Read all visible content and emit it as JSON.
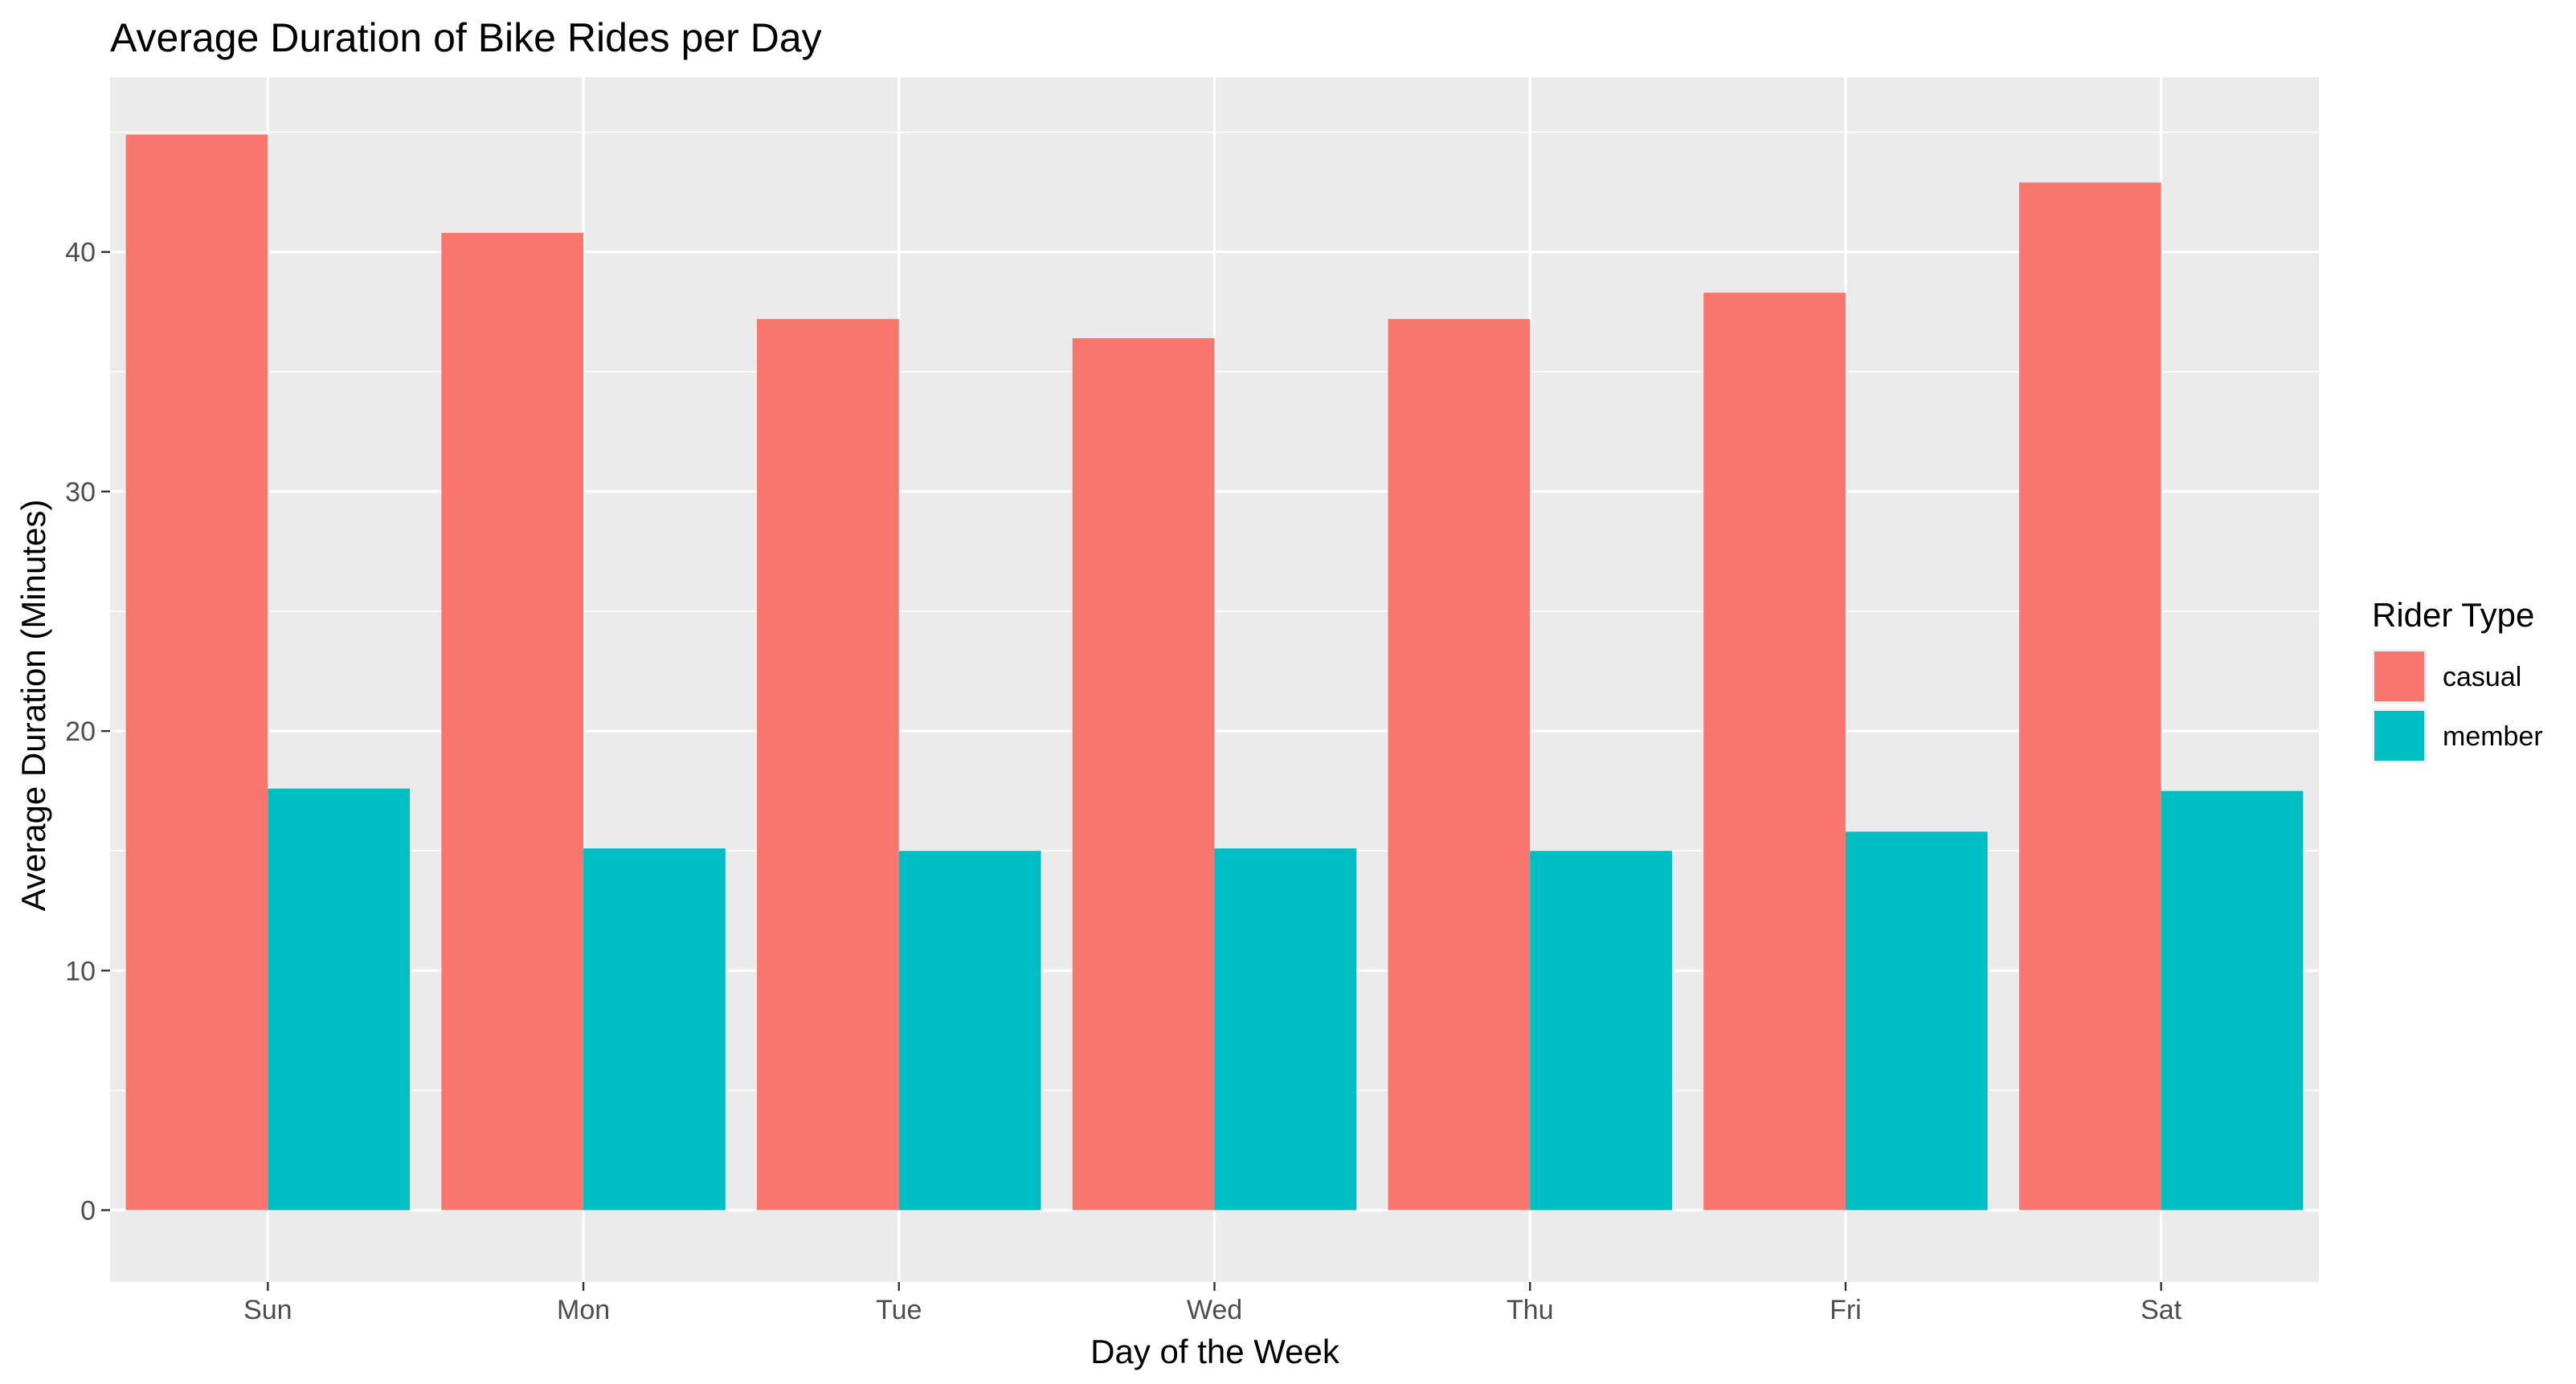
{
  "chart_data": {
    "type": "bar",
    "title": "Average Duration of Bike Rides per Day",
    "xlabel": "Day of the Week",
    "ylabel": "Average Duration (Minutes)",
    "categories": [
      "Sun",
      "Mon",
      "Tue",
      "Wed",
      "Thu",
      "Fri",
      "Sat"
    ],
    "series": [
      {
        "name": "casual",
        "color": "#F8766D",
        "values": [
          44.9,
          40.8,
          37.2,
          36.4,
          37.2,
          38.3,
          42.9
        ]
      },
      {
        "name": "member",
        "color": "#00BFC4",
        "values": [
          17.6,
          15.1,
          15.0,
          15.1,
          15.0,
          15.8,
          17.5
        ]
      }
    ],
    "ylim": [
      -3.0,
      47.3
    ],
    "yticks": [
      0,
      10,
      20,
      30,
      40
    ],
    "ytick_labels": [
      "0",
      "10",
      "20",
      "30",
      "40"
    ],
    "grid": true,
    "legend": {
      "title": "Rider Type",
      "placement": "right"
    }
  }
}
